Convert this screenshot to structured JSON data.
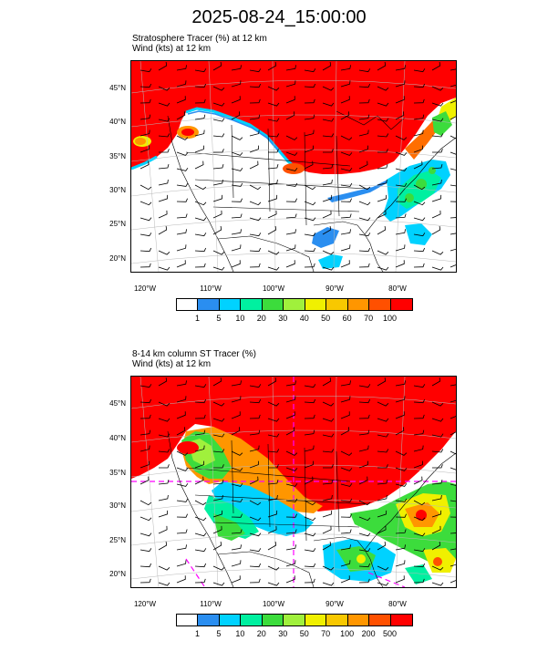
{
  "title": "2025-08-24_15:00:00",
  "panels": [
    {
      "subtitle1": "Stratosphere Tracer   (%)     at   12 km",
      "subtitle2": "Wind   (kts)     at   12 km",
      "lat_labels": [
        "45°N",
        "40°N",
        "35°N",
        "30°N",
        "25°N",
        "20°N"
      ],
      "lon_labels": [
        "120°W",
        "110°W",
        "100°W",
        "90°W",
        "80°W"
      ],
      "colorbar_labels": [
        "1",
        "5",
        "10",
        "20",
        "30",
        "40",
        "50",
        "60",
        "70",
        "100"
      ],
      "colors": [
        "#ffffff",
        "#2a8ef0",
        "#00d2ff",
        "#00f0a0",
        "#3cdc3c",
        "#a0f03c",
        "#f0f000",
        "#f8c800",
        "#ff9600",
        "#ff5000",
        "#ff0000"
      ]
    },
    {
      "subtitle1": "8-14 km column ST Tracer   (%)",
      "subtitle2": "Wind   (kts)     at   12 km",
      "lat_labels": [
        "45°N",
        "40°N",
        "35°N",
        "30°N",
        "25°N",
        "20°N"
      ],
      "lon_labels": [
        "120°W",
        "110°W",
        "100°W",
        "90°W",
        "80°W"
      ],
      "colorbar_labels": [
        "1",
        "5",
        "10",
        "20",
        "30",
        "50",
        "70",
        "100",
        "200",
        "500"
      ],
      "colors": [
        "#ffffff",
        "#2a8ef0",
        "#00d2ff",
        "#00f0a0",
        "#3cdc3c",
        "#a0f03c",
        "#f0f000",
        "#f8c800",
        "#ff9600",
        "#ff5000",
        "#ff0000"
      ]
    }
  ]
}
